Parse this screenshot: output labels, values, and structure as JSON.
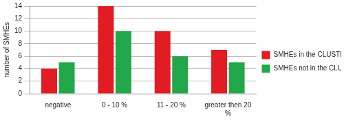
{
  "chart_data": {
    "type": "bar",
    "y_label": "number of SMHEs",
    "categories": [
      "negative",
      "0 - 10 %",
      "11 - 20 %",
      "greater then 20 %"
    ],
    "series": [
      {
        "name": "SMHEs in the CLUSTER",
        "color": "#e31b23",
        "values": [
          4,
          14,
          10,
          7
        ]
      },
      {
        "name": "SMHEs not in the CLUSTER",
        "color": "#22a84a",
        "values": [
          5,
          10,
          6,
          5
        ]
      }
    ],
    "ylim": [
      0,
      14
    ],
    "yticks": [
      0,
      2,
      4,
      6,
      8,
      10,
      12,
      14
    ],
    "grid": true,
    "legend": "right"
  }
}
